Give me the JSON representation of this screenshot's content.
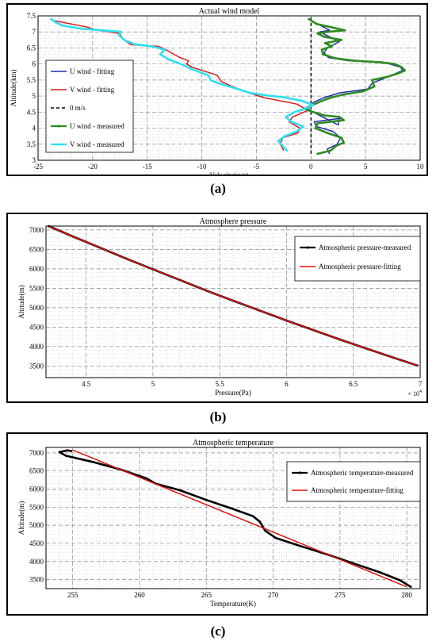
{
  "captions": [
    "(a)",
    "(b)",
    "(c)"
  ],
  "chart_data": [
    {
      "type": "line",
      "title": "Actual wind model",
      "xlabel": "Velocity(m/s)",
      "ylabel": "Altitude(km)",
      "xlim": [
        -25,
        10
      ],
      "ylim": [
        3,
        7.5
      ],
      "xticks": [
        -25,
        -20,
        -15,
        -10,
        -5,
        0,
        5,
        10
      ],
      "yticks": [
        3,
        3.5,
        4,
        4.5,
        5,
        5.5,
        6,
        6.5,
        7,
        7.5
      ],
      "grid": true,
      "legend_position": "left",
      "series": [
        {
          "name": "U wind - fitting",
          "color": "#1f2fa8",
          "style": "solid",
          "x": [
            1.7,
            1.5,
            2.4,
            2.7,
            2.0,
            0.5,
            0.3,
            2.6,
            2.5,
            0.5,
            -0.3,
            0.2,
            1.2,
            2.6,
            5.2,
            5.6,
            7.4,
            8.4,
            8.2,
            6.7,
            3.5,
            1.6,
            1.2,
            1.5,
            2.6,
            1.7,
            0.8,
            1.7,
            0.6
          ],
          "y": [
            3.2,
            3.35,
            3.5,
            3.7,
            3.9,
            4.05,
            4.2,
            4.3,
            4.1,
            4.45,
            4.6,
            4.8,
            4.95,
            5.1,
            5.22,
            5.4,
            5.65,
            5.8,
            5.9,
            6.05,
            6.1,
            6.2,
            6.35,
            6.5,
            6.7,
            6.85,
            7.0,
            7.05,
            7.25
          ]
        },
        {
          "name": "V wind - fitting",
          "color": "#d61d1d",
          "style": "solid",
          "x": [
            -2.5,
            -2.8,
            -2.6,
            -1.2,
            -1.0,
            -2.0,
            -1.7,
            -0.3,
            -1.3,
            -4.3,
            -5.5,
            -7.2,
            -8.2,
            -8.6,
            -9.5,
            -10.9,
            -11.4,
            -11.2,
            -12.0,
            -12.8,
            -13.6,
            -14.0,
            -16.5,
            -17.3,
            -17.5,
            -19.5,
            -20.5,
            -22.0,
            -23.5
          ],
          "y": [
            3.3,
            3.5,
            3.7,
            3.85,
            4.0,
            4.2,
            4.35,
            4.55,
            4.75,
            4.95,
            5.08,
            5.3,
            5.45,
            5.65,
            5.75,
            5.9,
            6.0,
            6.1,
            6.2,
            6.35,
            6.5,
            6.55,
            6.6,
            6.8,
            6.95,
            7.05,
            7.15,
            7.25,
            7.35
          ]
        },
        {
          "name": "0 m/s",
          "color": "#000000",
          "style": "dashed",
          "x": [
            0,
            0
          ],
          "y": [
            3.2,
            7.45
          ]
        },
        {
          "name": "U wind - measured",
          "color": "#2e8b22",
          "style": "solid-markers",
          "x": [
            0.6,
            1.8,
            2.3,
            3.0,
            2.8,
            1.5,
            0.4,
            0.6,
            3.0,
            2.6,
            1.2,
            0.2,
            -0.6,
            0.1,
            1.0,
            1.8,
            3.0,
            4.8,
            5.8,
            5.6,
            7.0,
            8.1,
            8.6,
            8.3,
            7.7,
            6.4,
            4.0,
            2.2,
            1.1,
            1.0,
            1.9,
            1.3,
            2.8,
            1.2,
            0.6,
            1.5,
            3.1,
            0.5,
            -0.2
          ],
          "y": [
            3.2,
            3.3,
            3.45,
            3.55,
            3.7,
            3.85,
            4.0,
            4.15,
            4.25,
            4.35,
            4.4,
            4.5,
            4.6,
            4.72,
            4.85,
            4.95,
            5.05,
            5.15,
            5.3,
            5.5,
            5.6,
            5.72,
            5.8,
            5.9,
            6.0,
            6.05,
            6.1,
            6.18,
            6.3,
            6.45,
            6.55,
            6.65,
            6.75,
            6.85,
            6.95,
            7.0,
            7.05,
            7.25,
            7.4
          ]
        },
        {
          "name": "V wind - measured",
          "color": "#2fe0f0",
          "style": "solid-markers",
          "x": [
            -2.2,
            -2.6,
            -3.0,
            -2.4,
            -1.3,
            -0.7,
            -1.8,
            -2.3,
            -1.5,
            -0.4,
            0.2,
            -0.8,
            -2.3,
            -4.0,
            -5.6,
            -7.0,
            -8.5,
            -9.2,
            -9.4,
            -10.2,
            -11.0,
            -11.6,
            -12.3,
            -13.1,
            -13.8,
            -13.4,
            -14.6,
            -16.2,
            -17.1,
            -17.6,
            -17.4,
            -19.2,
            -21.0,
            -22.8,
            -23.4,
            -23.8
          ],
          "y": [
            3.3,
            3.45,
            3.6,
            3.75,
            3.9,
            4.05,
            4.2,
            4.35,
            4.5,
            4.62,
            4.72,
            4.85,
            4.95,
            5.02,
            5.1,
            5.25,
            5.4,
            5.5,
            5.65,
            5.75,
            5.85,
            5.95,
            6.05,
            6.15,
            6.3,
            6.45,
            6.55,
            6.62,
            6.75,
            6.9,
            7.0,
            7.05,
            7.1,
            7.2,
            7.3,
            7.4
          ]
        }
      ]
    },
    {
      "type": "line",
      "title": "Atmosphere pressure",
      "xlabel": "Pressure(Pa)",
      "ylabel": "Altitude(m)",
      "xlim": [
        4.2,
        7.0
      ],
      "ylim": [
        3200,
        7100
      ],
      "xticks": [
        4.5,
        5,
        5.5,
        6,
        6.5,
        7
      ],
      "yticks": [
        3500,
        4000,
        4500,
        5000,
        5500,
        6000,
        6500,
        7000
      ],
      "x_multiplier": "× 10",
      "x_multiplier_exponent": "4",
      "grid": true,
      "legend_position": "top-right",
      "series": [
        {
          "name": "Atmospheric pressure-measured",
          "color": "#000000",
          "style": "solid-markers",
          "x": [
            4.22,
            4.4,
            4.6,
            4.8,
            5.0,
            5.2,
            5.4,
            5.6,
            5.8,
            6.0,
            6.2,
            6.4,
            6.6,
            6.8,
            6.98
          ],
          "y": [
            7100,
            6835,
            6550,
            6265,
            5990,
            5715,
            5440,
            5180,
            4925,
            4670,
            4425,
            4180,
            3945,
            3715,
            3510
          ]
        },
        {
          "name": "Atmospheric pressure-fitting",
          "color": "#e01010",
          "style": "solid",
          "x": [
            4.22,
            4.4,
            4.6,
            4.8,
            5.0,
            5.2,
            5.4,
            5.6,
            5.8,
            6.0,
            6.2,
            6.4,
            6.6,
            6.8,
            6.98
          ],
          "y": [
            7100,
            6835,
            6550,
            6265,
            5990,
            5715,
            5440,
            5180,
            4925,
            4670,
            4425,
            4180,
            3945,
            3715,
            3510
          ]
        }
      ]
    },
    {
      "type": "line",
      "title": "Atmospheric temperature",
      "xlabel": "Temperature(K)",
      "ylabel": "Altitude(m)",
      "xlim": [
        253,
        281
      ],
      "ylim": [
        3250,
        7150
      ],
      "xticks": [
        255,
        260,
        265,
        270,
        275,
        280
      ],
      "yticks": [
        3500,
        4000,
        4500,
        5000,
        5500,
        6000,
        6500,
        7000
      ],
      "grid": true,
      "legend_position": "top-right",
      "series": [
        {
          "name": "Atmospheric temperature-measured",
          "color": "#000000",
          "style": "solid-markers",
          "x": [
            254.9,
            254.6,
            254.0,
            254.5,
            256.5,
            258.5,
            260.5,
            261.2,
            263.0,
            265.0,
            267.0,
            268.5,
            269.0,
            269.4,
            270.2,
            272.0,
            274.0,
            276.0,
            278.0,
            279.5,
            280.3
          ],
          "y": [
            7050,
            7070,
            7020,
            6920,
            6750,
            6550,
            6300,
            6150,
            5970,
            5700,
            5450,
            5250,
            5100,
            4850,
            4650,
            4430,
            4200,
            3950,
            3700,
            3480,
            3300
          ]
        },
        {
          "name": "Atmospheric temperature-fitting",
          "color": "#e01010",
          "style": "solid",
          "x": [
            255.0,
            280.0
          ],
          "y": [
            7080,
            3300
          ]
        }
      ]
    }
  ]
}
